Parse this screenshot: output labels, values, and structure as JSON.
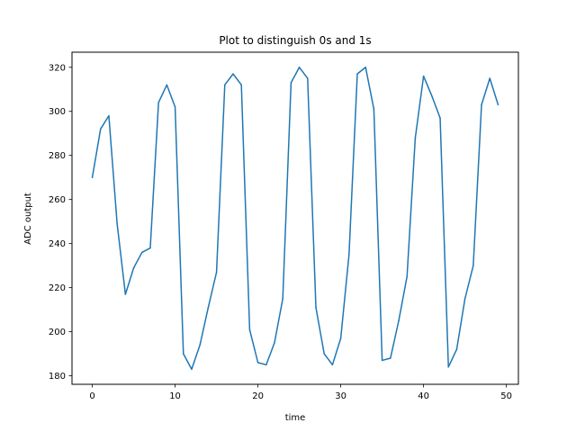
{
  "chart_data": {
    "type": "line",
    "title": "Plot to distinguish 0s and 1s",
    "xlabel": "time",
    "ylabel": "ADC output",
    "xlim": [
      -2.45,
      51.45
    ],
    "ylim": [
      176.15,
      326.85
    ],
    "xticks": [
      0,
      10,
      20,
      30,
      40,
      50
    ],
    "yticks": [
      180,
      200,
      220,
      240,
      260,
      280,
      300,
      320
    ],
    "grid": false,
    "legend": "none",
    "series": [
      {
        "color": "#1f77b4",
        "x": [
          0,
          1,
          2,
          3,
          4,
          5,
          6,
          7,
          8,
          9,
          10,
          11,
          12,
          13,
          14,
          15,
          16,
          17,
          18,
          19,
          20,
          21,
          22,
          23,
          24,
          25,
          26,
          27,
          28,
          29,
          30,
          31,
          32,
          33,
          34,
          35,
          36,
          37,
          38,
          39,
          40,
          41,
          42,
          43,
          44,
          45,
          46,
          47,
          48,
          49
        ],
        "y": [
          270,
          292,
          298,
          249,
          217,
          229,
          236,
          238,
          304,
          312,
          302,
          190,
          183,
          194,
          211,
          227,
          312,
          317,
          312,
          201,
          186,
          185,
          195,
          215,
          313,
          320,
          315,
          211,
          190,
          185,
          197,
          235,
          317,
          320,
          301,
          187,
          188,
          205,
          225,
          288,
          316,
          307,
          297,
          184,
          192,
          215,
          230,
          303,
          315,
          303
        ]
      }
    ]
  }
}
